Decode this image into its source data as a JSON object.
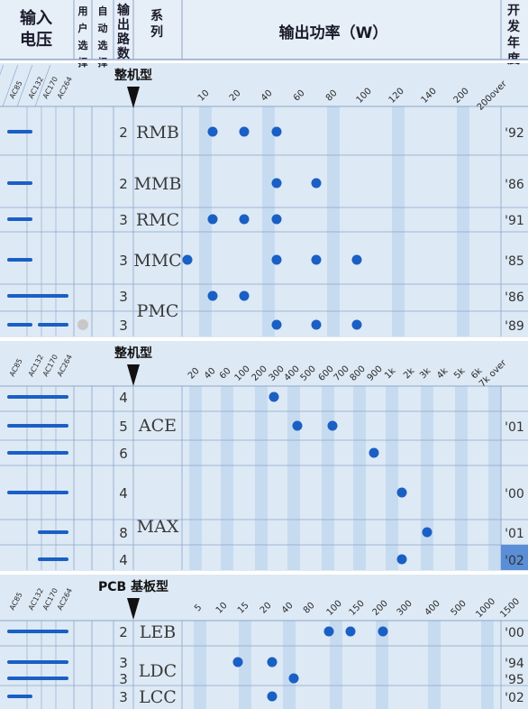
{
  "header": {
    "voltage_line1": "输入",
    "voltage_line2": "电压",
    "user_select": [
      "用",
      "户",
      "选",
      "择"
    ],
    "auto_select": [
      "自",
      "动",
      "选",
      "择"
    ],
    "outputs": [
      "输",
      "出",
      "路",
      "数"
    ],
    "series": [
      "系",
      "列"
    ],
    "power": "输出功率（W）",
    "year": [
      "开",
      "发",
      "年",
      "度"
    ]
  },
  "voltage_labels": [
    "AC85",
    "AC132",
    "AC170",
    "AC264"
  ],
  "colors": {
    "dot": "#1a5fc4",
    "bar": "#1a5fc4",
    "bg": "#dde9f5",
    "stripe": "#c7dbf0",
    "grid": "#8da6c8",
    "highlight": "#5a8fd8",
    "gray_dot": "#c8c8c8"
  },
  "chart_data": [
    {
      "type": "scatter",
      "title": "整机型",
      "x_ticks": [
        "10",
        "20",
        "40",
        "60",
        "80",
        "100",
        "120",
        "140",
        "200",
        "200over"
      ],
      "rows": [
        {
          "series": "RMB",
          "outputs": "2",
          "voltage": "AC85-AC132",
          "auto_select": false,
          "year": "'92",
          "points": [
            "10",
            "20",
            "40"
          ]
        },
        {
          "series": "MMB",
          "outputs": "2",
          "voltage": "AC85-AC132",
          "auto_select": false,
          "year": "'86",
          "points": [
            "40",
            "60"
          ]
        },
        {
          "series": "RMC",
          "outputs": "3",
          "voltage": "AC85-AC132",
          "auto_select": false,
          "year": "'91",
          "points": [
            "10",
            "20",
            "40"
          ]
        },
        {
          "series": "MMC",
          "outputs": "3",
          "voltage": "AC85-AC132",
          "auto_select": false,
          "year": "'85",
          "points": [
            "<10",
            "40",
            "60",
            "80"
          ]
        },
        {
          "series": "PMC",
          "outputs": "3",
          "voltage": "AC85-AC264",
          "auto_select": false,
          "year": "'86",
          "points": [
            "10",
            "20"
          ]
        },
        {
          "series": "PMC",
          "outputs": "3",
          "voltage": "AC85-AC132 / AC170-AC264",
          "auto_select": true,
          "year": "'89",
          "points": [
            "40",
            "60",
            "80"
          ]
        }
      ]
    },
    {
      "type": "scatter",
      "title": "整机型",
      "x_ticks": [
        "20",
        "40",
        "60",
        "100",
        "200",
        "300",
        "400",
        "500",
        "600",
        "700",
        "800",
        "900",
        "1k",
        "2k",
        "3k",
        "4k",
        "5k",
        "6k",
        "7k over"
      ],
      "rows": [
        {
          "series": "ACE",
          "outputs": "4",
          "voltage": "AC85-AC264",
          "year": "",
          "points": [
            "200"
          ]
        },
        {
          "series": "ACE",
          "outputs": "5",
          "voltage": "AC85-AC264",
          "year": "'01",
          "points": [
            "300",
            "600"
          ]
        },
        {
          "series": "ACE",
          "outputs": "6",
          "voltage": "AC85-AC264",
          "year": "",
          "points": [
            "900"
          ]
        },
        {
          "series": "MAX",
          "outputs": "4",
          "voltage": "AC85-AC264",
          "year": "'00",
          "points": [
            "1k"
          ]
        },
        {
          "series": "MAX",
          "outputs": "8",
          "voltage": "AC170-AC264",
          "year": "'01",
          "points": [
            "2k"
          ]
        },
        {
          "series": "MAX",
          "outputs": "4",
          "voltage": "AC170-AC264",
          "year": "'02",
          "points": [
            "1k"
          ]
        }
      ]
    },
    {
      "type": "scatter",
      "title": "PCB 基板型",
      "x_ticks": [
        "5",
        "10",
        "15",
        "20",
        "40",
        "80",
        "100",
        "150",
        "200",
        "300",
        "400",
        "500",
        "1000",
        "1500"
      ],
      "rows": [
        {
          "series": "LEB",
          "outputs": "2",
          "voltage": "AC85-AC264",
          "year": "'00",
          "points": [
            "100",
            "150",
            "200"
          ]
        },
        {
          "series": "LDC",
          "outputs": "3",
          "voltage": "AC85-AC264",
          "year": "'94",
          "points": [
            "15",
            "20"
          ]
        },
        {
          "series": "LDC",
          "outputs": "3",
          "voltage": "AC85-AC264",
          "year": "'95",
          "points": [
            "40"
          ]
        },
        {
          "series": "LCC",
          "outputs": "3",
          "voltage": "AC85-AC132",
          "year": "'02",
          "points": [
            "20"
          ]
        }
      ]
    }
  ]
}
